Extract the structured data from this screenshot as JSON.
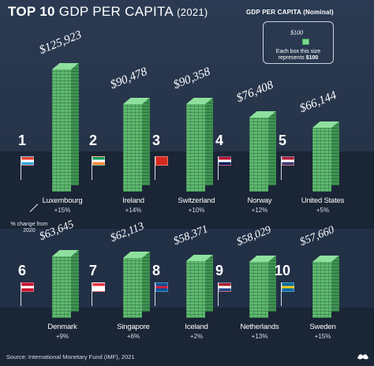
{
  "title": {
    "main": "TOP 10",
    "rest": "GDP PER CAPITA",
    "year": "(2021)"
  },
  "legend": {
    "heading": "GDP PER CAPITA (Nominal)",
    "amount": "$100",
    "text_line1": "Each box this size",
    "text_pre": "represents",
    "text_value": "$100"
  },
  "change_note": "% change from 2020",
  "source": "Source: International Monetary Fund (IMF), 2021",
  "chart_data": {
    "type": "bar",
    "title": "TOP 10 GDP PER CAPITA (2021)",
    "categories": [
      "Luxembourg",
      "Ireland",
      "Switzerland",
      "Norway",
      "United States",
      "Denmark",
      "Singapore",
      "Iceland",
      "Netherlands",
      "Sweden"
    ],
    "ranks": [
      1,
      2,
      3,
      4,
      5,
      6,
      7,
      8,
      9,
      10
    ],
    "values": [
      125923,
      90478,
      90358,
      76408,
      66144,
      63645,
      62113,
      58371,
      58029,
      57660
    ],
    "value_labels": [
      "$125,923",
      "$90,478",
      "$90,358",
      "$76,408",
      "$66,144",
      "$63,645",
      "$62,113",
      "$58,371",
      "$58,029",
      "$57,660"
    ],
    "change_from_2020": [
      "+15%",
      "+14%",
      "+10%",
      "+12%",
      "+5%",
      "+9%",
      "+6%",
      "+2%",
      "+13%",
      "+15%"
    ],
    "bar_color": "#5fb970",
    "legend": "top-right"
  }
}
